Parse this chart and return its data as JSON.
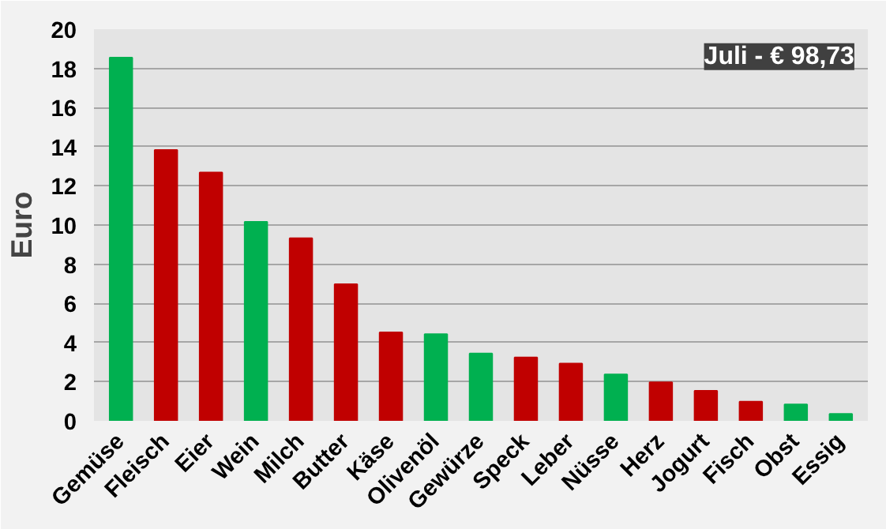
{
  "chart_data": {
    "type": "bar",
    "ylabel": "Euro",
    "categories": [
      "Gemüse",
      "Fleisch",
      "Eier",
      "Wein",
      "Milch",
      "Butter",
      "Käse",
      "Olivenöl",
      "Gewürze",
      "Speck",
      "Leber",
      "Nüsse",
      "Herz",
      "Jogurt",
      "Fisch",
      "Obst",
      "Essig"
    ],
    "values": [
      18.55,
      13.83,
      12.68,
      10.16,
      9.32,
      6.98,
      4.52,
      4.43,
      3.44,
      3.24,
      2.92,
      2.37,
      1.97,
      1.53,
      0.98,
      0.84,
      0.35
    ],
    "colors": [
      "#00b050",
      "#c00000",
      "#c00000",
      "#00b050",
      "#c00000",
      "#c00000",
      "#c00000",
      "#00b050",
      "#00b050",
      "#c00000",
      "#c00000",
      "#00b050",
      "#c00000",
      "#c00000",
      "#c00000",
      "#00b050",
      "#00b050"
    ],
    "ylim": [
      0,
      20
    ],
    "yticks": [
      0,
      2,
      4,
      6,
      8,
      10,
      12,
      14,
      16,
      18,
      20
    ],
    "grid": "y",
    "annotations": [
      "Juli - € 98,73"
    ]
  }
}
